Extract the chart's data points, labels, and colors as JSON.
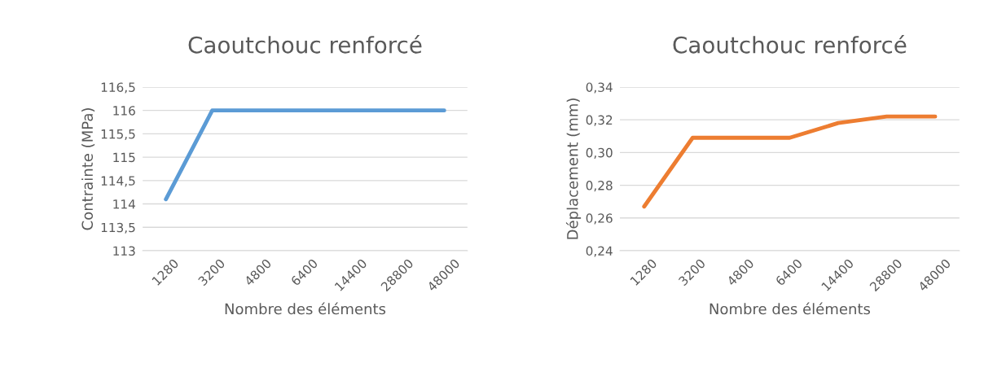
{
  "chart_data": [
    {
      "type": "line",
      "title": "Caoutchouc renforcé",
      "xlabel": "Nombre des éléments",
      "ylabel": "Contrainte (MPa)",
      "categories": [
        "1280",
        "3200",
        "4800",
        "6400",
        "14400",
        "28800",
        "48000"
      ],
      "series": [
        {
          "color": "#5b9bd5",
          "values": [
            114.1,
            116,
            116,
            116,
            116,
            116,
            116
          ]
        }
      ],
      "ylim": [
        113,
        116.5
      ],
      "yticks": [
        113,
        {
          "value": 113.5,
          "label": "113,5"
        },
        114,
        {
          "value": 114.5,
          "label": "114,5"
        },
        115,
        {
          "value": 115.5,
          "label": "115,5"
        },
        116,
        {
          "value": 116.5,
          "label": "116,5"
        }
      ],
      "grid": "y",
      "marker": "none",
      "line_style": "solid"
    },
    {
      "type": "line",
      "title": "Caoutchouc renforcé",
      "xlabel": "Nombre des éléments",
      "ylabel": "Déplacement (mm)",
      "categories": [
        "1280",
        "3200",
        "4800",
        "6400",
        "14400",
        "28800",
        "48000"
      ],
      "series": [
        {
          "color": "#ed7d31",
          "values": [
            0.267,
            0.309,
            0.309,
            0.309,
            0.318,
            0.322,
            0.322
          ]
        }
      ],
      "ylim": [
        0.24,
        0.34
      ],
      "yticks": [
        {
          "value": 0.24,
          "label": "0,24"
        },
        {
          "value": 0.26,
          "label": "0,26"
        },
        {
          "value": 0.28,
          "label": "0,28"
        },
        {
          "value": 0.3,
          "label": "0,30"
        },
        {
          "value": 0.32,
          "label": "0,32"
        },
        {
          "value": 0.34,
          "label": "0,34"
        }
      ],
      "grid": "y",
      "marker": "none",
      "line_style": "solid"
    }
  ]
}
